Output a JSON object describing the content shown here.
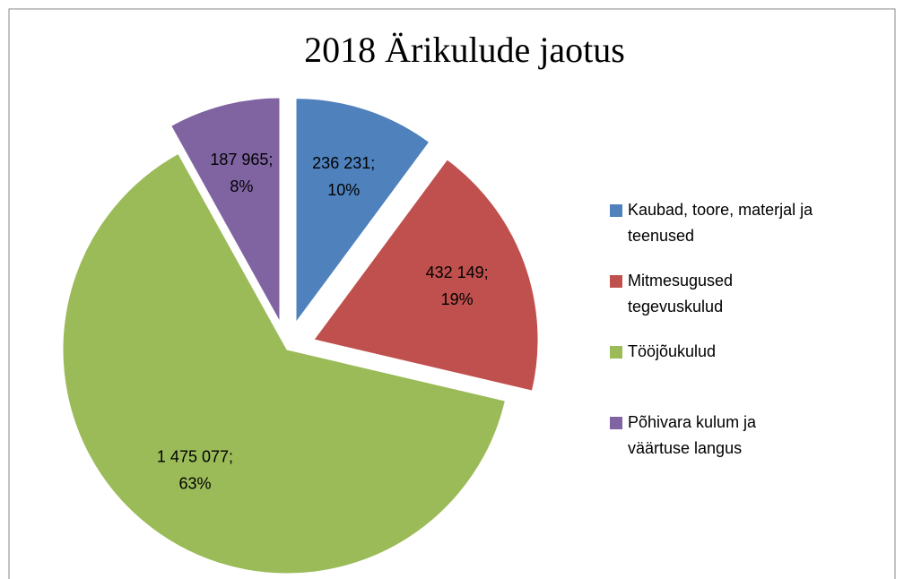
{
  "chart_data": {
    "type": "pie",
    "title": "2018 Ärikulude jaotus",
    "series": [
      {
        "name": "Kaubad, toore, materjal ja teenused",
        "color": "#4f81bd",
        "values": [
          236231
        ]
      },
      {
        "name": "Mitmesugused tegevuskulud",
        "color": "#c0504d",
        "values": [
          432149
        ]
      },
      {
        "name": "Tööjõukulud",
        "color": "#9bbb59",
        "values": [
          1475077
        ]
      },
      {
        "name": "Põhivara kulum ja väärtuse langus",
        "color": "#8064a2",
        "values": [
          187965
        ]
      }
    ],
    "value_labels": [
      "236 231;",
      "432 149;",
      "1 475 077;",
      "187 965;"
    ],
    "percent_labels": [
      "10%",
      "19%",
      "63%",
      "8%"
    ],
    "exploded": [
      true,
      true,
      false,
      true
    ],
    "legend": "right"
  }
}
